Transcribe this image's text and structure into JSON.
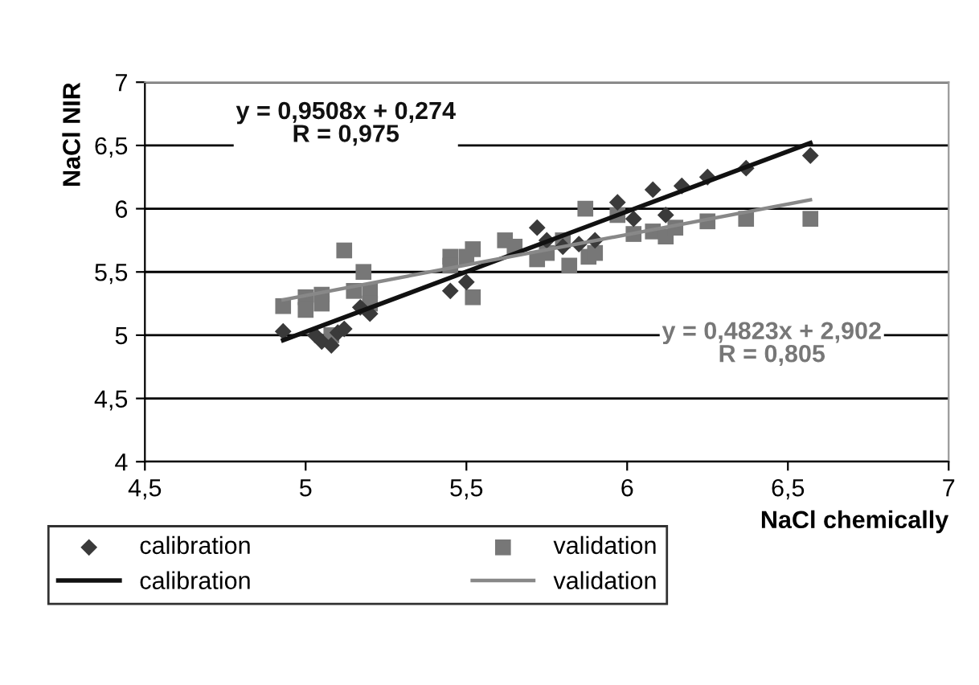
{
  "chart_data": {
    "type": "scatter",
    "xlabel": "NaCl chemically",
    "ylabel": "NaCl NIR",
    "xlim": [
      4.5,
      7
    ],
    "xticks": [
      {
        "value": 4.5,
        "label": "4,5"
      },
      5,
      {
        "value": 5.5,
        "label": "5,5"
      },
      6,
      {
        "value": 6.5,
        "label": "6,5"
      },
      7
    ],
    "ylim": [
      4,
      7
    ],
    "yticks": [
      4,
      {
        "value": 4.5,
        "label": "4,5"
      },
      5,
      {
        "value": 5.5,
        "label": "5,5"
      },
      6,
      {
        "value": 6.5,
        "label": "6,5"
      },
      7
    ],
    "grid": "y",
    "legend": "bottom",
    "annotations": [
      "y = 0,9508x + 0,274\nR = 0,975",
      "y = 0,4823x + 2,902\nR = 0,805"
    ],
    "series": [
      {
        "name": "calibration",
        "marker": "diamond",
        "color": "#3a3a3a",
        "x": [
          4.93,
          5.03,
          5.05,
          5.08,
          5.1,
          5.12,
          5.17,
          5.2,
          5.45,
          5.5,
          5.72,
          5.75,
          5.8,
          5.85,
          5.9,
          5.97,
          6.02,
          6.08,
          6.12,
          6.17,
          6.25,
          6.37,
          6.57
        ],
        "values": [
          5.03,
          5.0,
          4.95,
          4.92,
          5.02,
          5.05,
          5.22,
          5.17,
          5.35,
          5.42,
          5.85,
          5.75,
          5.7,
          5.72,
          5.75,
          6.05,
          5.92,
          6.15,
          5.95,
          6.18,
          6.25,
          6.32,
          6.42
        ]
      },
      {
        "name": "validation",
        "marker": "square",
        "color": "#777777",
        "x": [
          4.93,
          5.0,
          5.0,
          5.05,
          5.05,
          5.08,
          5.12,
          5.15,
          5.18,
          5.2,
          5.2,
          5.45,
          5.45,
          5.5,
          5.52,
          5.52,
          5.62,
          5.65,
          5.72,
          5.75,
          5.8,
          5.82,
          5.87,
          5.88,
          5.9,
          5.97,
          6.02,
          6.08,
          6.12,
          6.15,
          6.25,
          6.37,
          6.57
        ],
        "values": [
          5.23,
          5.3,
          5.2,
          5.25,
          5.32,
          5.0,
          5.67,
          5.35,
          5.5,
          5.35,
          5.25,
          5.62,
          5.55,
          5.62,
          5.68,
          5.3,
          5.75,
          5.7,
          5.6,
          5.65,
          5.75,
          5.55,
          6.0,
          5.62,
          5.65,
          5.95,
          5.8,
          5.82,
          5.78,
          5.85,
          5.9,
          5.92,
          5.92
        ]
      },
      {
        "name": "calibration",
        "type": "line",
        "marker": "none",
        "line_style": "solid",
        "color": "#111111",
        "x": [
          4.93,
          6.57
        ],
        "values": [
          4.96,
          6.52
        ]
      },
      {
        "name": "validation",
        "type": "line",
        "marker": "none",
        "line_style": "solid",
        "color": "#888888",
        "x": [
          4.93,
          6.57
        ],
        "values": [
          5.28,
          6.07
        ]
      }
    ]
  }
}
